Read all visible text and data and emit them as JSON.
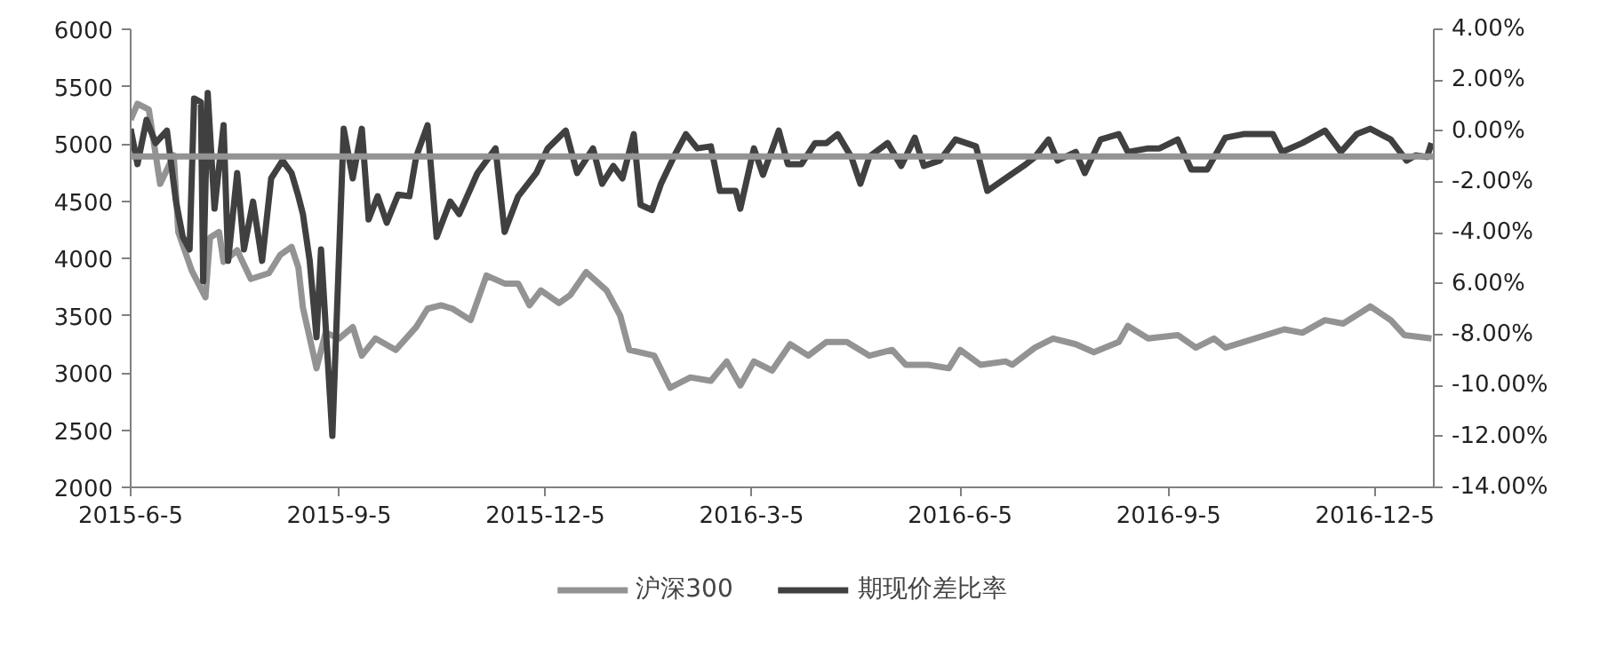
{
  "chart_data": {
    "type": "line",
    "xlim": [
      "2015-06-05",
      "2016-12-31"
    ],
    "xticks": [
      {
        "value": "2015-06-05",
        "label": "2015-6-5"
      },
      {
        "value": "2015-09-05",
        "label": "2015-9-5"
      },
      {
        "value": "2015-12-05",
        "label": "2015-12-5"
      },
      {
        "value": "2016-03-05",
        "label": "2016-3-5"
      },
      {
        "value": "2016-06-05",
        "label": "2016-6-5"
      },
      {
        "value": "2016-09-05",
        "label": "2016-9-5"
      },
      {
        "value": "2016-12-05",
        "label": "2016-12-5"
      }
    ],
    "ylim": [
      2000,
      6000
    ],
    "yticks": [
      2000,
      2500,
      3000,
      3500,
      4000,
      4500,
      5000,
      5500,
      6000
    ],
    "y2lim": [
      -14,
      4
    ],
    "y2ticks": [
      {
        "value": -14,
        "label": "-14.00%"
      },
      {
        "value": -12,
        "label": "-12.00%"
      },
      {
        "value": -10,
        "label": "-10.00%"
      },
      {
        "value": -8,
        "label": "-8.00%"
      },
      {
        "value": -6,
        "label": "6.00%"
      },
      {
        "value": -4,
        "label": "-4.00%"
      },
      {
        "value": -2,
        "label": "-2.00%"
      },
      {
        "value": 0,
        "label": "0.00%"
      },
      {
        "value": 2,
        "label": "2.00%"
      },
      {
        "value": 4,
        "label": "4.00%"
      }
    ],
    "grid": false,
    "legend": "bottom",
    "ref_lines": [
      {
        "axis": "y2",
        "value": -1,
        "color": "#939393"
      }
    ],
    "series": [
      {
        "name": "沪深300",
        "color": "#939393",
        "x": [
          "2015-06-05",
          "2015-06-08",
          "2015-06-13",
          "2015-06-18",
          "2015-06-24",
          "2015-06-26",
          "2015-07-02",
          "2015-07-08",
          "2015-07-10",
          "2015-07-14",
          "2015-07-16",
          "2015-07-22",
          "2015-07-28",
          "2015-08-05",
          "2015-08-10",
          "2015-08-15",
          "2015-08-18",
          "2015-08-20",
          "2015-08-26",
          "2015-08-30",
          "2015-09-05",
          "2015-09-11",
          "2015-09-15",
          "2015-09-21",
          "2015-09-30",
          "2015-10-09",
          "2015-10-14",
          "2015-10-20",
          "2015-10-25",
          "2015-11-02",
          "2015-11-09",
          "2015-11-17",
          "2015-11-23",
          "2015-11-28",
          "2015-12-03",
          "2015-12-11",
          "2015-12-16",
          "2015-12-23",
          "2016-01-01",
          "2016-01-07",
          "2016-01-11",
          "2016-01-22",
          "2016-01-29",
          "2016-02-07",
          "2016-02-16",
          "2016-02-23",
          "2016-02-29",
          "2016-03-06",
          "2016-03-14",
          "2016-03-22",
          "2016-03-30",
          "2016-04-07",
          "2016-04-16",
          "2016-04-26",
          "2016-05-06",
          "2016-05-12",
          "2016-05-22",
          "2016-05-31",
          "2016-06-05",
          "2016-06-14",
          "2016-06-25",
          "2016-06-28",
          "2016-07-08",
          "2016-07-16",
          "2016-07-26",
          "2016-08-03",
          "2016-08-14",
          "2016-08-18",
          "2016-08-27",
          "2016-09-09",
          "2016-09-17",
          "2016-09-25",
          "2016-09-30",
          "2016-10-13",
          "2016-10-26",
          "2016-11-03",
          "2016-11-13",
          "2016-11-21",
          "2016-12-03",
          "2016-12-12",
          "2016-12-18",
          "2016-12-30"
        ],
        "values": [
          5210,
          5350,
          5300,
          4650,
          4900,
          4230,
          3890,
          3660,
          4180,
          4230,
          3970,
          4070,
          3820,
          3870,
          4030,
          4100,
          3920,
          3570,
          3040,
          3350,
          3300,
          3400,
          3150,
          3300,
          3200,
          3400,
          3560,
          3590,
          3560,
          3460,
          3850,
          3780,
          3780,
          3590,
          3720,
          3610,
          3680,
          3880,
          3720,
          3500,
          3200,
          3150,
          2870,
          2960,
          2930,
          3100,
          2890,
          3100,
          3020,
          3250,
          3150,
          3270,
          3270,
          3150,
          3200,
          3070,
          3070,
          3040,
          3200,
          3070,
          3100,
          3070,
          3220,
          3300,
          3250,
          3180,
          3270,
          3410,
          3300,
          3330,
          3220,
          3300,
          3220,
          3300,
          3380,
          3350,
          3460,
          3430,
          3580,
          3460,
          3330,
          3300
        ]
      },
      {
        "name": "期现价差比率",
        "color": "#404040",
        "axis": "y2",
        "x": [
          "2015-06-05",
          "2015-06-08",
          "2015-06-12",
          "2015-06-16",
          "2015-06-21",
          "2015-06-25",
          "2015-06-28",
          "2015-07-01",
          "2015-07-03",
          "2015-07-06",
          "2015-07-07",
          "2015-07-09",
          "2015-07-12",
          "2015-07-16",
          "2015-07-18",
          "2015-07-22",
          "2015-07-25",
          "2015-07-29",
          "2015-08-02",
          "2015-08-06",
          "2015-08-11",
          "2015-08-15",
          "2015-08-18",
          "2015-08-20",
          "2015-08-23",
          "2015-08-26",
          "2015-08-28",
          "2015-09-02",
          "2015-09-07",
          "2015-09-11",
          "2015-09-15",
          "2015-09-18",
          "2015-09-22",
          "2015-09-26",
          "2015-10-01",
          "2015-10-06",
          "2015-10-09",
          "2015-10-14",
          "2015-10-18",
          "2015-10-24",
          "2015-10-28",
          "2015-11-05",
          "2015-11-13",
          "2015-11-17",
          "2015-11-23",
          "2015-12-01",
          "2015-12-06",
          "2015-12-14",
          "2015-12-19",
          "2015-12-26",
          "2015-12-30",
          "2016-01-04",
          "2016-01-08",
          "2016-01-13",
          "2016-01-16",
          "2016-01-21",
          "2016-01-25",
          "2016-01-31",
          "2016-02-05",
          "2016-02-10",
          "2016-02-16",
          "2016-02-20",
          "2016-02-27",
          "2016-02-29",
          "2016-03-06",
          "2016-03-10",
          "2016-03-17",
          "2016-03-21",
          "2016-03-27",
          "2016-04-02",
          "2016-04-07",
          "2016-04-12",
          "2016-04-18",
          "2016-04-22",
          "2016-04-26",
          "2016-05-04",
          "2016-05-10",
          "2016-05-16",
          "2016-05-20",
          "2016-05-27",
          "2016-06-03",
          "2016-06-12",
          "2016-06-17",
          "2016-06-25",
          "2016-07-03",
          "2016-07-08",
          "2016-07-14",
          "2016-07-18",
          "2016-07-26",
          "2016-07-30",
          "2016-08-06",
          "2016-08-14",
          "2016-08-18",
          "2016-08-27",
          "2016-09-01",
          "2016-09-09",
          "2016-09-15",
          "2016-09-22",
          "2016-09-30",
          "2016-10-08",
          "2016-10-21",
          "2016-10-25",
          "2016-11-03",
          "2016-11-13",
          "2016-11-20",
          "2016-11-27",
          "2016-12-03",
          "2016-12-12",
          "2016-12-19",
          "2016-12-23",
          "2016-12-28",
          "2016-12-30"
        ],
        "values": [
          0.09,
          -1.3,
          0.44,
          -0.47,
          0.02,
          -2.77,
          -4.16,
          -4.65,
          1.28,
          1.14,
          -5.9,
          1.5,
          -3.05,
          0.23,
          -5.1,
          -1.65,
          -4.65,
          -2.77,
          -5.1,
          -1.86,
          -1.16,
          -1.65,
          -2.56,
          -3.26,
          -5.1,
          -8.1,
          -4.65,
          -11.98,
          0.09,
          -1.86,
          0.09,
          -3.47,
          -2.56,
          -3.6,
          -2.5,
          -2.56,
          -1.0,
          0.23,
          -4.16,
          -2.77,
          -3.26,
          -1.65,
          -0.68,
          -3.96,
          -2.56,
          -1.65,
          -0.68,
          0.02,
          -1.65,
          -0.68,
          -2.07,
          -1.37,
          -1.86,
          -0.12,
          -2.9,
          -3.1,
          -2.07,
          -0.95,
          -0.12,
          -0.68,
          -0.6,
          -2.35,
          -2.35,
          -3.05,
          -0.68,
          -1.72,
          0.02,
          -1.3,
          -1.3,
          -0.47,
          -0.47,
          -0.12,
          -1.02,
          -2.07,
          -1.0,
          -0.47,
          -1.37,
          -0.26,
          -1.37,
          -1.16,
          -0.33,
          -0.6,
          -2.35,
          -1.86,
          -1.37,
          -1.02,
          -0.33,
          -1.16,
          -0.82,
          -1.65,
          -0.33,
          -0.12,
          -0.82,
          -0.68,
          -0.68,
          -0.33,
          -1.51,
          -1.51,
          -0.26,
          -0.12,
          -0.12,
          -0.82,
          -0.47,
          0.02,
          -0.82,
          -0.12,
          0.09,
          -0.33,
          -1.16,
          -0.95,
          -1.02,
          -0.47
        ]
      }
    ]
  }
}
